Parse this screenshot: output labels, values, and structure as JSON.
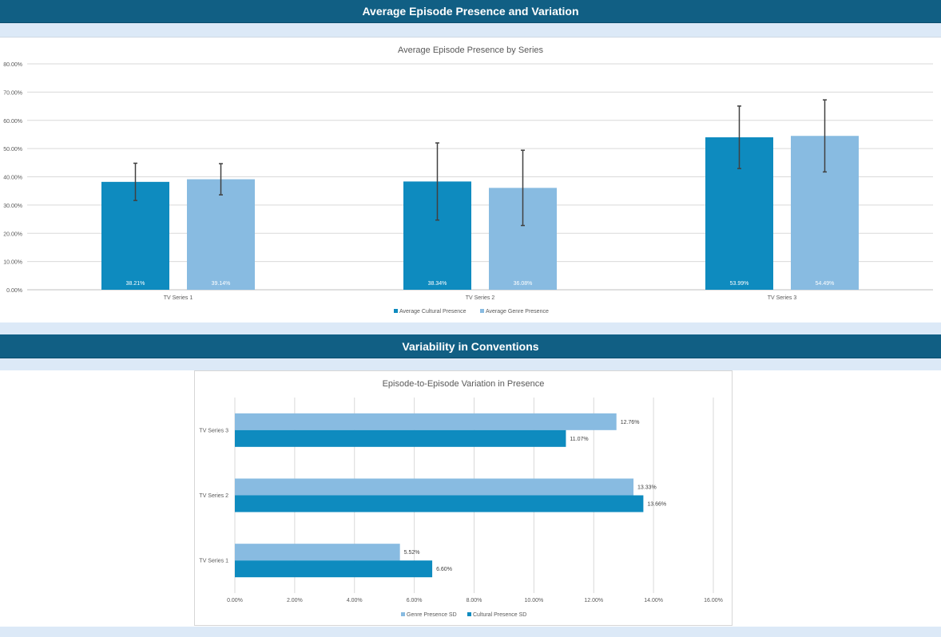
{
  "banners": {
    "top": "Average Episode Presence and Variation",
    "middle": "Variability in Conventions"
  },
  "colors": {
    "banner": "#115f84",
    "strip": "#dce9f7",
    "cultural": "#0e8bbf",
    "genre": "#88bbe1",
    "error_bar": "#404040",
    "grid": "#d9d9d9"
  },
  "chart_data": [
    {
      "type": "bar",
      "title": "Average Episode Presence by Series",
      "categories": [
        "TV Series 1",
        "TV Series 2",
        "TV Series 3"
      ],
      "series": [
        {
          "name": "Average Cultural Presence",
          "values": [
            38.21,
            38.34,
            53.99
          ],
          "labels": [
            "38.21%",
            "38.34%",
            "53.99%"
          ],
          "error": [
            6.6,
            13.66,
            11.07
          ]
        },
        {
          "name": "Average Genre Presence",
          "values": [
            39.14,
            36.08,
            54.49
          ],
          "labels": [
            "39.14%",
            "36.08%",
            "54.49%"
          ],
          "error": [
            5.52,
            13.33,
            12.76
          ]
        }
      ],
      "ylim": [
        0,
        80
      ],
      "yticks": [
        "0.00%",
        "10.00%",
        "20.00%",
        "30.00%",
        "40.00%",
        "50.00%",
        "60.00%",
        "70.00%",
        "80.00%"
      ],
      "grid": true,
      "legend": "bottom"
    },
    {
      "type": "bar",
      "orientation": "horizontal",
      "title": "Episode-to-Episode Variation in Presence",
      "categories": [
        "TV Series 1",
        "TV Series 2",
        "TV Series 3"
      ],
      "series": [
        {
          "name": "Genre Presence SD",
          "values": [
            5.52,
            13.33,
            12.76
          ],
          "labels": [
            "5.52%",
            "13.33%",
            "12.76%"
          ]
        },
        {
          "name": "Cultural Presence SD",
          "values": [
            6.6,
            13.66,
            11.07
          ],
          "labels": [
            "6.60%",
            "13.66%",
            "11.07%"
          ]
        }
      ],
      "xlim": [
        0,
        16
      ],
      "xticks": [
        "0.00%",
        "2.00%",
        "4.00%",
        "6.00%",
        "8.00%",
        "10.00%",
        "12.00%",
        "14.00%",
        "16.00%"
      ],
      "grid": true,
      "legend": "bottom"
    }
  ]
}
